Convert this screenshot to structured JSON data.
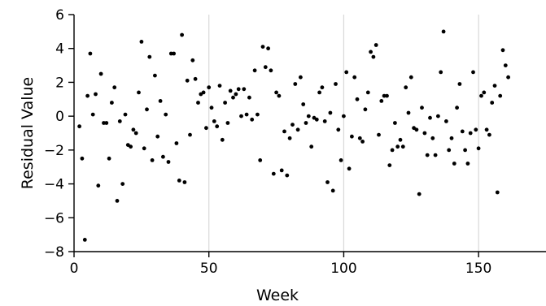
{
  "chart_data": {
    "type": "scatter",
    "xlabel": "Week",
    "ylabel": "Residual Value",
    "xlim": [
      0,
      175
    ],
    "ylim": [
      -8,
      6
    ],
    "x_ticks": [
      0,
      50,
      100,
      150
    ],
    "y_ticks": [
      -8,
      -6,
      -4,
      -2,
      0,
      2,
      4,
      6
    ],
    "x_gridlines": [
      50,
      100,
      150
    ],
    "grid": "vertical",
    "marker_color": "#000000",
    "gridline_color": "#d9d9d9",
    "points": [
      [
        2,
        -0.6
      ],
      [
        3,
        -2.5
      ],
      [
        4,
        -7.3
      ],
      [
        5,
        1.2
      ],
      [
        6,
        3.7
      ],
      [
        7,
        0.1
      ],
      [
        8,
        1.3
      ],
      [
        9,
        -4.1
      ],
      [
        10,
        2.5
      ],
      [
        11,
        -0.4
      ],
      [
        12,
        -0.4
      ],
      [
        13,
        -2.5
      ],
      [
        14,
        0.8
      ],
      [
        15,
        1.7
      ],
      [
        16,
        -5.0
      ],
      [
        17,
        -0.3
      ],
      [
        18,
        -4.0
      ],
      [
        19,
        0.1
      ],
      [
        20,
        -1.7
      ],
      [
        21,
        -1.8
      ],
      [
        22,
        -0.8
      ],
      [
        23,
        -1.0
      ],
      [
        24,
        1.4
      ],
      [
        25,
        4.4
      ],
      [
        26,
        -1.9
      ],
      [
        27,
        0.4
      ],
      [
        28,
        3.5
      ],
      [
        29,
        -2.6
      ],
      [
        30,
        2.4
      ],
      [
        31,
        -1.2
      ],
      [
        32,
        0.9
      ],
      [
        33,
        -2.4
      ],
      [
        34,
        0.1
      ],
      [
        35,
        -2.7
      ],
      [
        36,
        3.7
      ],
      [
        37,
        3.7
      ],
      [
        38,
        -1.6
      ],
      [
        39,
        -3.8
      ],
      [
        40,
        4.8
      ],
      [
        41,
        -3.9
      ],
      [
        42,
        2.1
      ],
      [
        43,
        -1.1
      ],
      [
        44,
        3.3
      ],
      [
        45,
        2.2
      ],
      [
        46,
        0.8
      ],
      [
        47,
        1.3
      ],
      [
        48,
        1.4
      ],
      [
        49,
        -0.7
      ],
      [
        50,
        1.7
      ],
      [
        51,
        0.5
      ],
      [
        52,
        -0.3
      ],
      [
        53,
        -0.6
      ],
      [
        54,
        1.8
      ],
      [
        55,
        -1.4
      ],
      [
        56,
        0.8
      ],
      [
        57,
        -0.4
      ],
      [
        58,
        1.5
      ],
      [
        59,
        1.1
      ],
      [
        60,
        1.3
      ],
      [
        61,
        1.6
      ],
      [
        62,
        0.0
      ],
      [
        63,
        1.6
      ],
      [
        64,
        0.1
      ],
      [
        65,
        1.1
      ],
      [
        66,
        -0.2
      ],
      [
        67,
        2.7
      ],
      [
        68,
        0.1
      ],
      [
        69,
        -2.6
      ],
      [
        70,
        4.1
      ],
      [
        71,
        2.9
      ],
      [
        72,
        4.0
      ],
      [
        73,
        2.7
      ],
      [
        74,
        -3.4
      ],
      [
        75,
        1.4
      ],
      [
        76,
        1.2
      ],
      [
        77,
        -3.2
      ],
      [
        78,
        -0.9
      ],
      [
        79,
        -3.5
      ],
      [
        80,
        -1.3
      ],
      [
        81,
        -0.5
      ],
      [
        82,
        1.9
      ],
      [
        83,
        -0.8
      ],
      [
        84,
        2.3
      ],
      [
        85,
        0.7
      ],
      [
        86,
        -0.4
      ],
      [
        87,
        0.0
      ],
      [
        88,
        -1.8
      ],
      [
        89,
        -0.1
      ],
      [
        90,
        -0.2
      ],
      [
        91,
        1.4
      ],
      [
        92,
        1.7
      ],
      [
        93,
        -0.3
      ],
      [
        94,
        -3.9
      ],
      [
        95,
        0.2
      ],
      [
        96,
        -4.4
      ],
      [
        97,
        1.9
      ],
      [
        98,
        -0.8
      ],
      [
        99,
        -2.6
      ],
      [
        100,
        0.0
      ],
      [
        101,
        2.6
      ],
      [
        102,
        -3.1
      ],
      [
        103,
        -1.2
      ],
      [
        104,
        2.3
      ],
      [
        105,
        1.0
      ],
      [
        106,
        -1.3
      ],
      [
        107,
        -1.5
      ],
      [
        108,
        0.4
      ],
      [
        109,
        1.4
      ],
      [
        110,
        3.8
      ],
      [
        111,
        3.5
      ],
      [
        112,
        4.2
      ],
      [
        113,
        -1.1
      ],
      [
        114,
        0.9
      ],
      [
        115,
        1.2
      ],
      [
        116,
        1.2
      ],
      [
        117,
        -2.9
      ],
      [
        118,
        -2.0
      ],
      [
        119,
        -0.4
      ],
      [
        120,
        -1.8
      ],
      [
        121,
        -1.4
      ],
      [
        122,
        -1.8
      ],
      [
        123,
        1.7
      ],
      [
        124,
        0.2
      ],
      [
        125,
        2.3
      ],
      [
        126,
        -0.7
      ],
      [
        127,
        -0.8
      ],
      [
        128,
        -4.6
      ],
      [
        129,
        0.5
      ],
      [
        130,
        -1.0
      ],
      [
        131,
        -2.3
      ],
      [
        132,
        -0.1
      ],
      [
        133,
        -1.3
      ],
      [
        134,
        -2.3
      ],
      [
        135,
        0.0
      ],
      [
        136,
        2.6
      ],
      [
        137,
        5.0
      ],
      [
        138,
        -0.3
      ],
      [
        139,
        -2.0
      ],
      [
        140,
        -1.3
      ],
      [
        141,
        -2.8
      ],
      [
        142,
        0.5
      ],
      [
        143,
        1.9
      ],
      [
        144,
        -0.9
      ],
      [
        145,
        -2.0
      ],
      [
        146,
        -2.8
      ],
      [
        147,
        -1.0
      ],
      [
        148,
        2.6
      ],
      [
        149,
        -0.8
      ],
      [
        150,
        -1.9
      ],
      [
        151,
        1.2
      ],
      [
        152,
        1.4
      ],
      [
        153,
        -0.8
      ],
      [
        154,
        -1.1
      ],
      [
        155,
        0.8
      ],
      [
        156,
        1.8
      ],
      [
        157,
        -4.5
      ],
      [
        158,
        1.2
      ],
      [
        159,
        3.9
      ],
      [
        160,
        3.0
      ],
      [
        161,
        2.3
      ]
    ]
  }
}
